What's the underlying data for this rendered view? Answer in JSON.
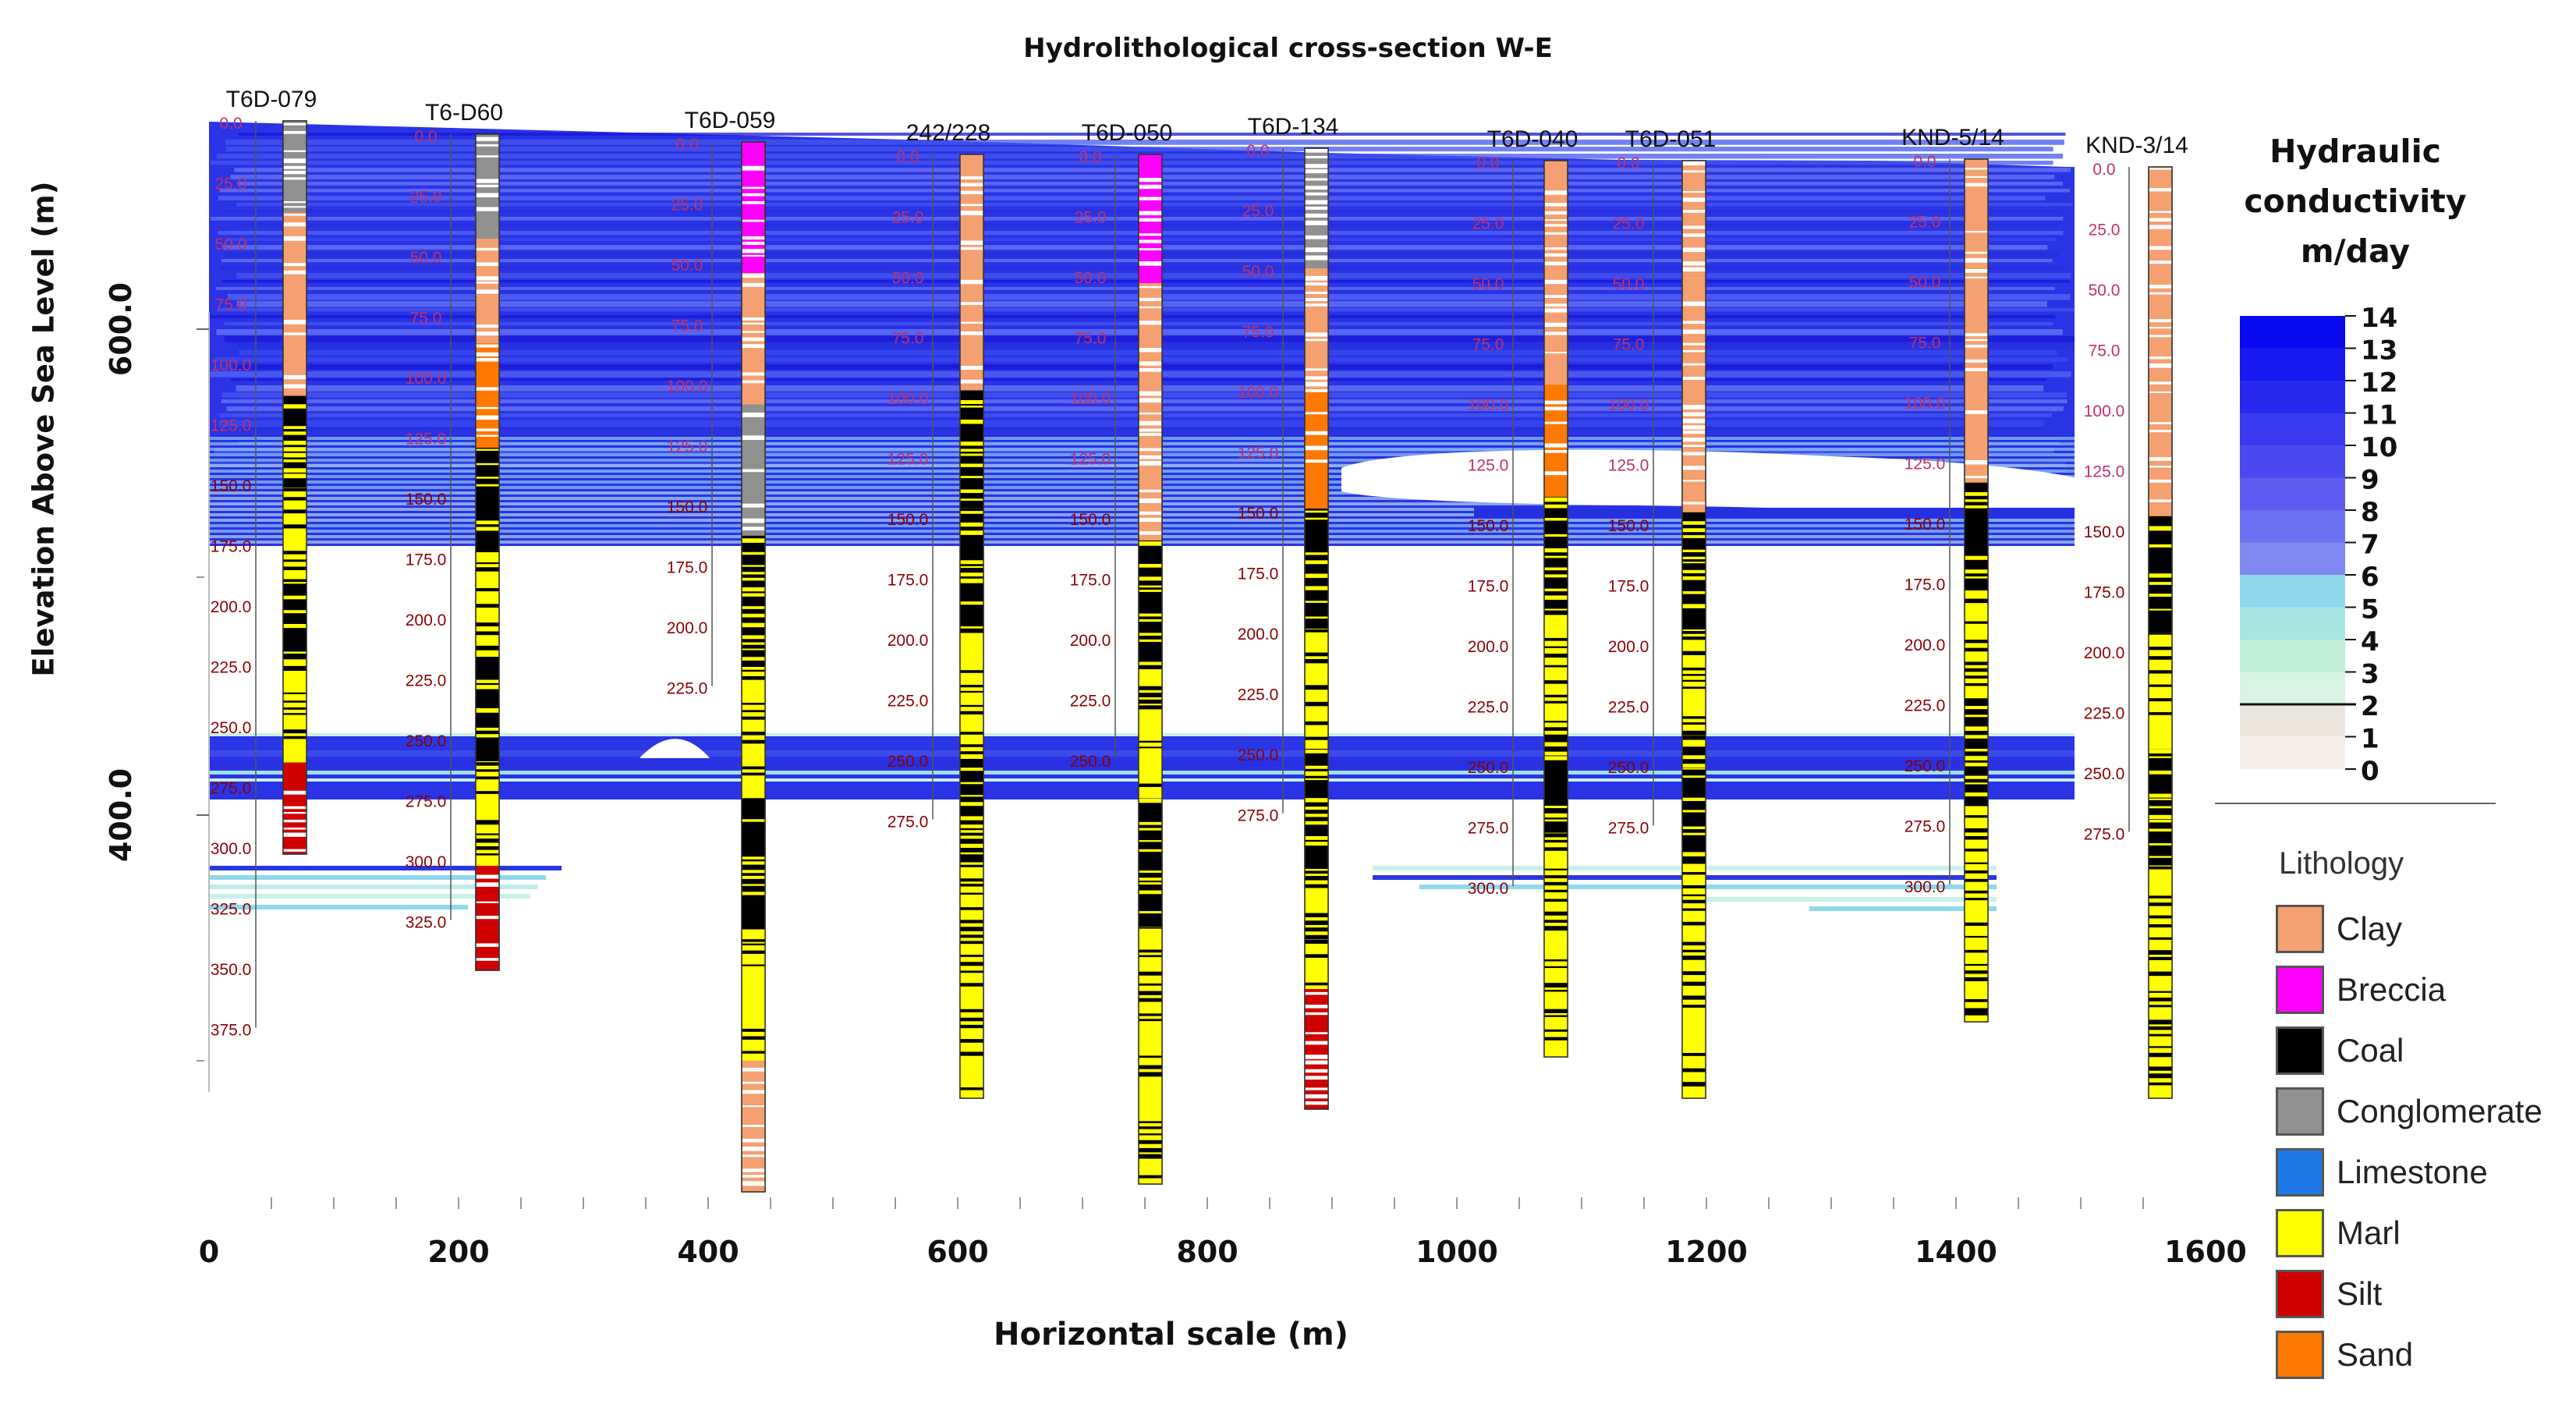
{
  "figure": {
    "title": "Hydrolithological cross-section W-E",
    "y_axis_label": "Elevation Above Sea Level (m)",
    "x_axis_label": "Horizontal scale (m)"
  },
  "chart_data": {
    "type": "cross-section",
    "x_ticks": [
      "0",
      "200",
      "400",
      "600",
      "800",
      "1000",
      "1200",
      "1400",
      "1600"
    ],
    "y_ticks": [
      "600.0",
      "400.0"
    ],
    "boreholes": [
      {
        "name": "T6D-079",
        "x": 55,
        "top_depth": "0.0",
        "depth_labels": [
          "0.0",
          "25.0",
          "50.0",
          "75.0",
          "100.0",
          "125.0",
          "150.0",
          "175.0",
          "200.0",
          "225.0",
          "250.0",
          "275.0",
          "300.0",
          "325.0",
          "350.0",
          "375.0"
        ]
      },
      {
        "name": "T6-D60",
        "x": 220,
        "top_depth": "0.0",
        "depth_labels": [
          "0.0",
          "25.0",
          "50.0",
          "75.0",
          "100.0",
          "125.0",
          "150.0",
          "175.0",
          "200.0",
          "225.0",
          "250.0",
          "275.0",
          "300.0",
          "325.0"
        ]
      },
      {
        "name": "T6D-059",
        "x": 395,
        "top_depth": "0.0",
        "depth_labels": [
          "0.0",
          "25.0",
          "50.0",
          "75.0",
          "100.0",
          "125.0",
          "150.0",
          "175.0",
          "200.0",
          "225.0"
        ]
      },
      {
        "name": "242/228",
        "x": 605,
        "top_depth": "0.0",
        "depth_labels": [
          "0.0",
          "25.0",
          "50.0",
          "75.0",
          "100.0",
          "125.0",
          "150.0",
          "175.0",
          "200.0",
          "225.0",
          "250.0",
          "275.0"
        ]
      },
      {
        "name": "T6D-050",
        "x": 765,
        "top_depth": "0.0",
        "depth_labels": [
          "0.0",
          "25.0",
          "50.0",
          "75.0",
          "100.0",
          "125.0",
          "150.0",
          "175.0",
          "200.0",
          "225.0",
          "250.0"
        ]
      },
      {
        "name": "T6D-134",
        "x": 895,
        "top_depth": "0.0",
        "depth_labels": [
          "0.0",
          "25.0",
          "50.0",
          "75.0",
          "100.0",
          "125.0",
          "150.0",
          "175.0",
          "200.0",
          "225.0",
          "250.0",
          "275.0"
        ]
      },
      {
        "name": "T6D-040",
        "x": 1085,
        "top_depth": "0.0",
        "depth_labels": [
          "0.0",
          "25.0",
          "50.0",
          "75.0",
          "100.0",
          "125.0",
          "150.0",
          "175.0",
          "200.0",
          "225.0",
          "250.0",
          "275.0",
          "300.0"
        ]
      },
      {
        "name": "T6D-051",
        "x": 1220,
        "top_depth": "0.0",
        "depth_labels": [
          "0.0",
          "25.0",
          "50.0",
          "75.0",
          "100.0",
          "125.0",
          "150.0",
          "175.0",
          "200.0",
          "225.0",
          "250.0",
          "275.0"
        ]
      },
      {
        "name": "KND-5/14",
        "x": 1430,
        "top_depth": "0.0",
        "depth_labels": [
          "0.0",
          "25.0",
          "50.0",
          "75.0",
          "100.0",
          "125.0",
          "150.0",
          "175.0",
          "200.0",
          "225.0",
          "250.0",
          "275.0",
          "300.0"
        ]
      },
      {
        "name": "KND-3/14",
        "x": 1590,
        "top_depth": "0.0",
        "depth_labels": [
          "0.0",
          "25.0",
          "50.0",
          "75.0",
          "100.0",
          "125.0",
          "150.0",
          "175.0",
          "200.0",
          "225.0",
          "250.0",
          "275.0"
        ]
      }
    ],
    "conductivity_scale": {
      "title": "Hydraulic conductivity m/day",
      "labels": [
        "14",
        "13",
        "12",
        "11",
        "10",
        "9",
        "8",
        "7",
        "6",
        "5",
        "4",
        "3",
        "2",
        "1",
        "0"
      ]
    },
    "lithology_legend": {
      "title": "Lithology",
      "items": [
        {
          "name": "Clay",
          "color": "#f4a070"
        },
        {
          "name": "Breccia",
          "color": "#ff00ff"
        },
        {
          "name": "Coal",
          "color": "#000000"
        },
        {
          "name": "Conglomerate",
          "color": "#909090"
        },
        {
          "name": "Limestone",
          "color": "#1e78e6"
        },
        {
          "name": "Marl",
          "color": "#ffff00"
        },
        {
          "name": "Silt",
          "color": "#d00000"
        },
        {
          "name": "Sand",
          "color": "#ff7800"
        }
      ]
    }
  }
}
